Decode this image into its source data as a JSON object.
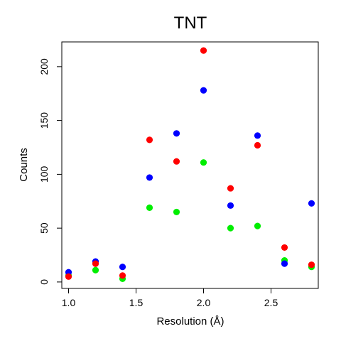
{
  "chart_data": {
    "type": "scatter",
    "title": "TNT",
    "xlabel": "Resolution (Å)",
    "ylabel": "Counts",
    "xlim": [
      0.95,
      2.85
    ],
    "ylim": [
      -6,
      223
    ],
    "x_ticks": [
      "1.0",
      "1.5",
      "2.0",
      "2.5"
    ],
    "x_tick_values": [
      1.0,
      1.5,
      2.0,
      2.5
    ],
    "y_ticks": [
      "0",
      "50",
      "100",
      "150",
      "200"
    ],
    "y_tick_values": [
      0,
      50,
      100,
      150,
      200
    ],
    "grid": false,
    "x": [
      1.0,
      1.2,
      1.4,
      1.6,
      1.8,
      2.0,
      2.2,
      2.4,
      2.6,
      2.8
    ],
    "series": [
      {
        "color": "#00ee00",
        "values": [
          6,
          11,
          3,
          69,
          65,
          111,
          50,
          52,
          20,
          14
        ]
      },
      {
        "color": "#0000ff",
        "values": [
          9,
          19,
          14,
          97,
          138,
          178,
          71,
          136,
          17,
          73
        ]
      },
      {
        "color": "#ff0000",
        "values": [
          5,
          17,
          6,
          132,
          112,
          215,
          87,
          127,
          32,
          16
        ]
      }
    ]
  }
}
